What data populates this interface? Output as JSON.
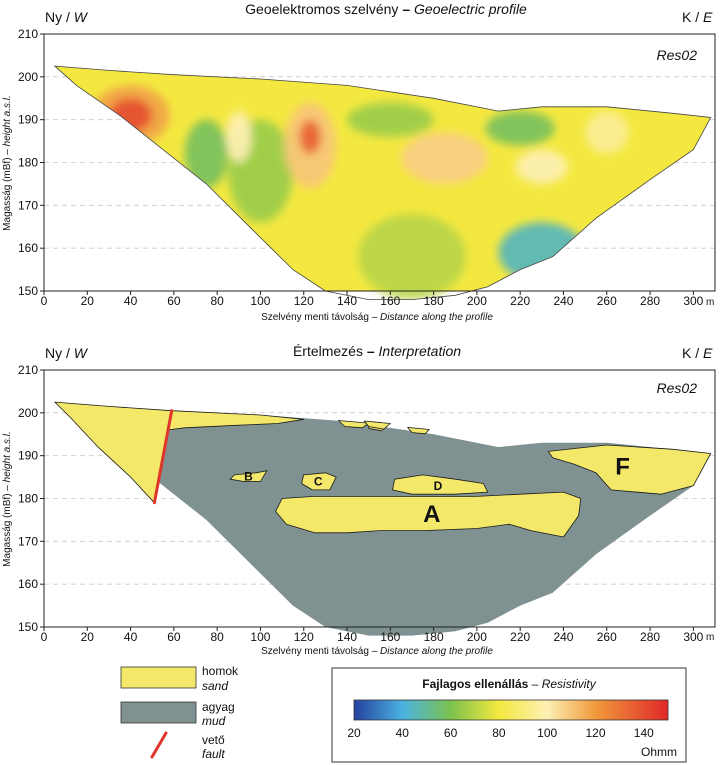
{
  "colors": {
    "sand": "#f3e86a",
    "mud": "#7f9191",
    "fault": "#e0352b",
    "frame": "#222222",
    "grid": "#c9c9c9"
  },
  "chart_data": [
    {
      "type": "heatmap",
      "title": "Geoelektromos szelvény",
      "title_sep": "–",
      "title_en": "Geoelectric profile",
      "label": "Res02",
      "left_label": "Ny",
      "left_label_en": "W",
      "right_label": "K",
      "right_label_en": "E",
      "xlabel": "Szelvény menti távolság",
      "xlabel_sep": "–",
      "xlabel_en": "Distance along the profile",
      "ylabel": "Magasság (mBf)",
      "ylabel_sep": "–",
      "ylabel_en": "height a.s.l.",
      "x_unit": "m",
      "xlim": [
        0,
        310
      ],
      "ylim": [
        150,
        210
      ],
      "x_ticks": [
        0,
        20,
        40,
        60,
        80,
        100,
        120,
        140,
        160,
        180,
        200,
        220,
        240,
        260,
        280,
        300
      ],
      "y_ticks": [
        150,
        160,
        170,
        180,
        190,
        200,
        210
      ],
      "value_unit": "Ohmm",
      "surface": [
        [
          5,
          202.5
        ],
        [
          30,
          201.5
        ],
        [
          60,
          200.5
        ],
        [
          100,
          199.5
        ],
        [
          140,
          198
        ],
        [
          180,
          195
        ],
        [
          210,
          192
        ],
        [
          230,
          193
        ],
        [
          260,
          193
        ],
        [
          290,
          191.5
        ],
        [
          308,
          190.5
        ]
      ],
      "base": [
        [
          308,
          190.5
        ],
        [
          300,
          183
        ],
        [
          280,
          176
        ],
        [
          255,
          167
        ],
        [
          235,
          158
        ],
        [
          220,
          155
        ],
        [
          205,
          151
        ],
        [
          190,
          149
        ],
        [
          170,
          148
        ],
        [
          150,
          148
        ],
        [
          130,
          150
        ],
        [
          115,
          155
        ],
        [
          95,
          165
        ],
        [
          75,
          175
        ],
        [
          55,
          183
        ],
        [
          35,
          191
        ],
        [
          15,
          198
        ],
        [
          5,
          202.5
        ]
      ],
      "resistivity_features": [
        {
          "x": 40,
          "y": 191,
          "rx": 18,
          "ry": 7,
          "value": 118
        },
        {
          "x": 40,
          "y": 191,
          "rx": 10,
          "ry": 4,
          "value": 140
        },
        {
          "x": 123,
          "y": 184,
          "rx": 12,
          "ry": 10,
          "value": 110
        },
        {
          "x": 123,
          "y": 186,
          "rx": 5,
          "ry": 4,
          "value": 135
        },
        {
          "x": 90,
          "y": 186,
          "rx": 6,
          "ry": 6,
          "value": 100
        },
        {
          "x": 185,
          "y": 181,
          "rx": 20,
          "ry": 6,
          "value": 108
        },
        {
          "x": 230,
          "y": 179,
          "rx": 12,
          "ry": 4,
          "value": 100
        },
        {
          "x": 260,
          "y": 187,
          "rx": 10,
          "ry": 5,
          "value": 95
        },
        {
          "x": 100,
          "y": 178,
          "rx": 15,
          "ry": 12,
          "value": 65
        },
        {
          "x": 75,
          "y": 182,
          "rx": 10,
          "ry": 8,
          "value": 58
        },
        {
          "x": 160,
          "y": 190,
          "rx": 20,
          "ry": 4,
          "value": 65
        },
        {
          "x": 220,
          "y": 188,
          "rx": 16,
          "ry": 4,
          "value": 58
        },
        {
          "x": 230,
          "y": 159,
          "rx": 20,
          "ry": 7,
          "value": 45
        },
        {
          "x": 170,
          "y": 158,
          "rx": 25,
          "ry": 10,
          "value": 70
        }
      ]
    },
    {
      "type": "area",
      "title": "Értelmezés",
      "title_sep": "–",
      "title_en": "Interpretation",
      "label": "Res02",
      "left_label": "Ny",
      "left_label_en": "W",
      "right_label": "K",
      "right_label_en": "E",
      "xlabel": "Szelvény menti távolság",
      "xlabel_sep": "–",
      "xlabel_en": "Distance along the profile",
      "ylabel": "Magasság (mBf)",
      "ylabel_sep": "–",
      "ylabel_en": "height a.s.l.",
      "x_unit": "m",
      "xlim": [
        0,
        310
      ],
      "ylim": [
        150,
        210
      ],
      "x_ticks": [
        0,
        20,
        40,
        60,
        80,
        100,
        120,
        140,
        160,
        180,
        200,
        220,
        240,
        260,
        280,
        300
      ],
      "y_ticks": [
        150,
        160,
        170,
        180,
        190,
        200,
        210
      ],
      "bodies": [
        {
          "name": "mud-body",
          "unit": "mud",
          "points": [
            [
              5,
              202.5
            ],
            [
              30,
              201.5
            ],
            [
              60,
              200.5
            ],
            [
              100,
              199.5
            ],
            [
              140,
              198
            ],
            [
              180,
              195
            ],
            [
              210,
              192
            ],
            [
              230,
              193
            ],
            [
              260,
              193
            ],
            [
              290,
              191.5
            ],
            [
              308,
              190.5
            ],
            [
              300,
              183
            ],
            [
              280,
              176
            ],
            [
              255,
              167
            ],
            [
              235,
              158
            ],
            [
              220,
              155
            ],
            [
              205,
              151
            ],
            [
              190,
              149
            ],
            [
              170,
              148
            ],
            [
              150,
              148
            ],
            [
              130,
              150
            ],
            [
              115,
              155
            ],
            [
              95,
              165
            ],
            [
              75,
              175
            ],
            [
              55,
              183
            ],
            [
              35,
              191
            ],
            [
              15,
              198
            ]
          ]
        },
        {
          "name": "sand-west",
          "unit": "sand",
          "points": [
            [
              5,
              202.5
            ],
            [
              30,
              201.5
            ],
            [
              59,
              200.5
            ],
            [
              51,
              179
            ],
            [
              40,
              185
            ],
            [
              25,
              192
            ],
            [
              12,
              199
            ]
          ]
        },
        {
          "name": "sand-top-strip",
          "unit": "sand",
          "points": [
            [
              59,
              200.5
            ],
            [
              100,
              199.5
            ],
            [
              120,
              198.5
            ],
            [
              108,
              197.5
            ],
            [
              85,
              197
            ],
            [
              65,
              196.5
            ],
            [
              57,
              196
            ]
          ]
        },
        {
          "name": "sand-cap-b",
          "unit": "sand",
          "points": [
            [
              136,
              198.2
            ],
            [
              150,
              197.6
            ],
            [
              147,
              196.5
            ],
            [
              139,
              196.8
            ]
          ]
        },
        {
          "name": "sand-cap-c",
          "unit": "sand",
          "points": [
            [
              150,
              197.3
            ],
            [
              158,
              197
            ],
            [
              156,
              195.8
            ],
            [
              150,
              196.4
            ]
          ]
        },
        {
          "name": "sand-cap-d",
          "unit": "sand",
          "points": [
            [
              148,
              198.1
            ],
            [
              160,
              197.5
            ],
            [
              157,
              196.2
            ],
            [
              150,
              196.8
            ]
          ]
        },
        {
          "name": "sand-small",
          "unit": "sand",
          "points": [
            [
              168,
              196.6
            ],
            [
              178,
              196.1
            ],
            [
              176,
              195.1
            ],
            [
              170,
              195.4
            ]
          ]
        },
        {
          "name": "sand-b",
          "unit": "sand",
          "label": "B",
          "points": [
            [
              88,
              185.5
            ],
            [
              98,
              186
            ],
            [
              103,
              186.5
            ],
            [
              100,
              184
            ],
            [
              92,
              184
            ],
            [
              86,
              184.5
            ]
          ]
        },
        {
          "name": "sand-c",
          "unit": "sand",
          "label": "C",
          "points": [
            [
              120,
              185.5
            ],
            [
              130,
              186
            ],
            [
              135,
              185
            ],
            [
              132,
              182
            ],
            [
              124,
              182
            ],
            [
              119,
              183.5
            ]
          ]
        },
        {
          "name": "sand-d",
          "unit": "sand",
          "label": "D",
          "points": [
            [
              162,
              184.5
            ],
            [
              175,
              185.5
            ],
            [
              190,
              184.5
            ],
            [
              203,
              183.5
            ],
            [
              205,
              181.5
            ],
            [
              190,
              181
            ],
            [
              170,
              181
            ],
            [
              161,
              182
            ]
          ]
        },
        {
          "name": "sand-a",
          "unit": "sand",
          "label": "A",
          "points": [
            [
              110,
              180
            ],
            [
              125,
              180.5
            ],
            [
              145,
              180.5
            ],
            [
              175,
              180.5
            ],
            [
              200,
              180.5
            ],
            [
              220,
              181
            ],
            [
              240,
              181.5
            ],
            [
              248,
              180
            ],
            [
              247,
              176
            ],
            [
              240,
              171
            ],
            [
              225,
              172.5
            ],
            [
              215,
              174
            ],
            [
              200,
              173
            ],
            [
              175,
              172.5
            ],
            [
              155,
              172.5
            ],
            [
              140,
              172
            ],
            [
              125,
              172
            ],
            [
              112,
              174
            ],
            [
              107,
              177
            ]
          ]
        },
        {
          "name": "sand-f",
          "unit": "sand",
          "label": "F",
          "points": [
            [
              233,
              191
            ],
            [
              260,
              192.5
            ],
            [
              290,
              191.5
            ],
            [
              308,
              190.5
            ],
            [
              300,
              183
            ],
            [
              285,
              181
            ],
            [
              262,
              182
            ],
            [
              255,
              186
            ],
            [
              245,
              188
            ],
            [
              235,
              189.5
            ]
          ]
        }
      ],
      "fault_line": [
        [
          59,
          200.5
        ],
        [
          51,
          179
        ]
      ]
    }
  ],
  "legend": {
    "units": [
      {
        "unit": "sand",
        "label": "homok",
        "label_en": "sand"
      },
      {
        "unit": "mud",
        "label": "agyag",
        "label_en": "mud"
      },
      {
        "unit": "fault",
        "label": "vető",
        "label_en": "fault"
      }
    ],
    "colorbar": {
      "title": "Fajlagos ellenállás",
      "title_sep": "–",
      "title_en": "Resistivity",
      "ticks": [
        20,
        40,
        60,
        80,
        100,
        120,
        140
      ],
      "range": [
        20,
        150
      ],
      "unit": "Ohmm",
      "stops": [
        {
          "value": 20,
          "color": "#2440a0"
        },
        {
          "value": 40,
          "color": "#4ab2e0"
        },
        {
          "value": 60,
          "color": "#7cc24e"
        },
        {
          "value": 80,
          "color": "#f4e840"
        },
        {
          "value": 100,
          "color": "#fdf0b4"
        },
        {
          "value": 120,
          "color": "#f09a3c"
        },
        {
          "value": 150,
          "color": "#e02828"
        }
      ]
    }
  }
}
